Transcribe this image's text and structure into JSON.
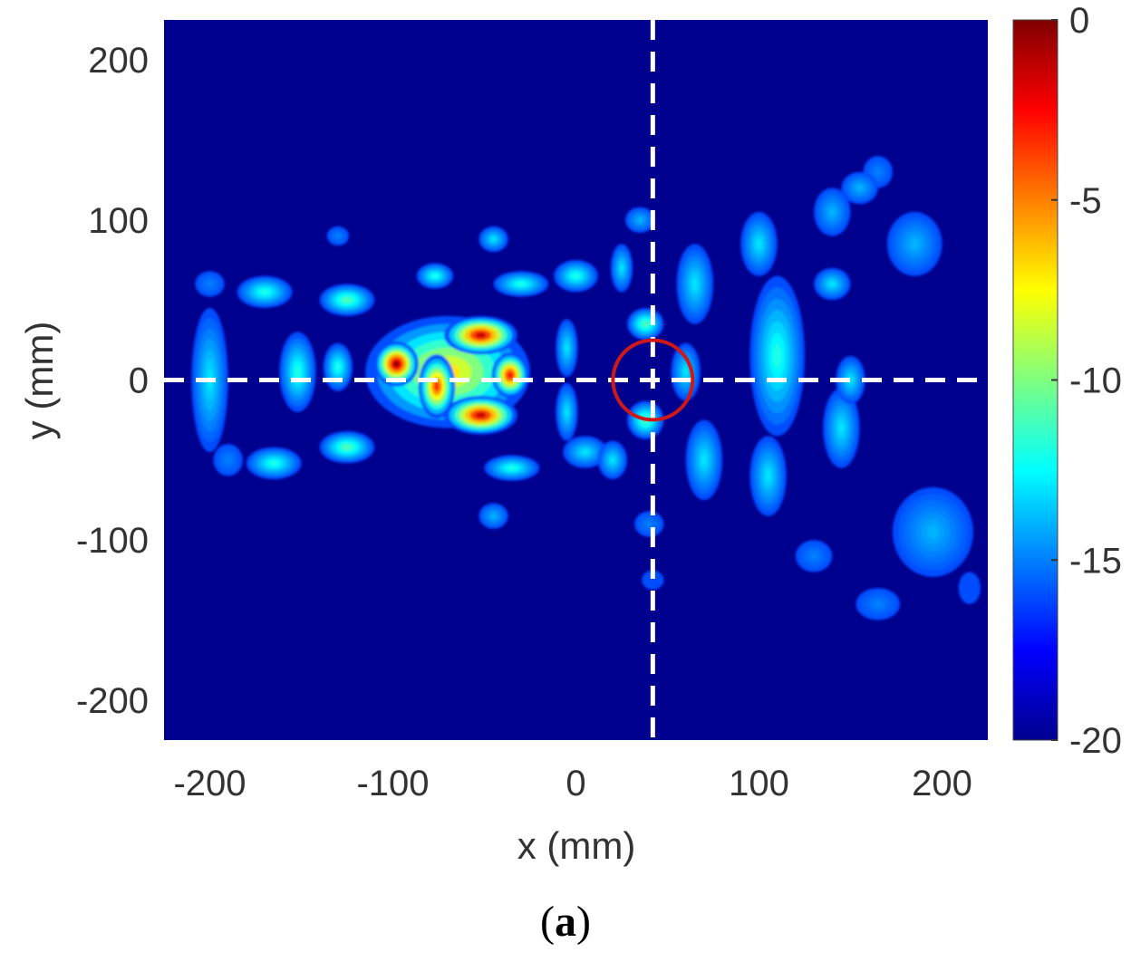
{
  "panel_label": "a",
  "panel_open": "(",
  "panel_close": ")",
  "chart_data": {
    "type": "heatmap",
    "title": "",
    "xlabel": "x (mm)",
    "ylabel": "y (mm)",
    "xlim": [
      -225,
      225
    ],
    "ylim": [
      -225,
      225
    ],
    "xticks": [
      -200,
      -100,
      0,
      100,
      200
    ],
    "yticks": [
      200,
      100,
      0,
      -100,
      -200
    ],
    "colormap": "jet",
    "colorbar": {
      "range": [
        -20,
        0
      ],
      "ticks": [
        0,
        -5,
        -10,
        -15,
        -20
      ]
    },
    "crosshair": {
      "x": 42,
      "y": 0,
      "style": "white dashed"
    },
    "marker": {
      "type": "circle",
      "x": 42,
      "y": 0,
      "radius_mm": 15,
      "color": "#d01818"
    },
    "blobs": [
      {
        "x": -70,
        "y": 5,
        "rx": 45,
        "ry": 35,
        "v": -7
      },
      {
        "x": -98,
        "y": 10,
        "rx": 12,
        "ry": 14,
        "v": -0.5
      },
      {
        "x": -52,
        "y": 28,
        "rx": 20,
        "ry": 12,
        "v": -1.5
      },
      {
        "x": -52,
        "y": -22,
        "rx": 20,
        "ry": 12,
        "v": -1.5
      },
      {
        "x": -36,
        "y": 3,
        "rx": 10,
        "ry": 14,
        "v": -2.5
      },
      {
        "x": -76,
        "y": -4,
        "rx": 10,
        "ry": 20,
        "v": -3.5
      },
      {
        "x": -200,
        "y": 0,
        "rx": 10,
        "ry": 45,
        "v": -13
      },
      {
        "x": -170,
        "y": 55,
        "rx": 15,
        "ry": 10,
        "v": -12
      },
      {
        "x": -165,
        "y": -52,
        "rx": 15,
        "ry": 10,
        "v": -12
      },
      {
        "x": -152,
        "y": 5,
        "rx": 10,
        "ry": 25,
        "v": -12
      },
      {
        "x": -125,
        "y": 50,
        "rx": 15,
        "ry": 10,
        "v": -11
      },
      {
        "x": -125,
        "y": -42,
        "rx": 15,
        "ry": 10,
        "v": -11
      },
      {
        "x": -130,
        "y": 8,
        "rx": 8,
        "ry": 15,
        "v": -12
      },
      {
        "x": -77,
        "y": 65,
        "rx": 10,
        "ry": 8,
        "v": -12
      },
      {
        "x": -30,
        "y": 60,
        "rx": 15,
        "ry": 8,
        "v": -12
      },
      {
        "x": -35,
        "y": -55,
        "rx": 15,
        "ry": 8,
        "v": -12
      },
      {
        "x": -45,
        "y": 88,
        "rx": 8,
        "ry": 8,
        "v": -13
      },
      {
        "x": -5,
        "y": 20,
        "rx": 6,
        "ry": 18,
        "v": -13
      },
      {
        "x": -5,
        "y": -20,
        "rx": 6,
        "ry": 18,
        "v": -13
      },
      {
        "x": 0,
        "y": 65,
        "rx": 12,
        "ry": 10,
        "v": -12
      },
      {
        "x": 5,
        "y": -45,
        "rx": 12,
        "ry": 10,
        "v": -13
      },
      {
        "x": -45,
        "y": -85,
        "rx": 8,
        "ry": 8,
        "v": -14
      },
      {
        "x": -130,
        "y": 90,
        "rx": 6,
        "ry": 6,
        "v": -15
      },
      {
        "x": 25,
        "y": 70,
        "rx": 6,
        "ry": 15,
        "v": -13
      },
      {
        "x": 38,
        "y": 35,
        "rx": 10,
        "ry": 10,
        "v": -11
      },
      {
        "x": 38,
        "y": -25,
        "rx": 10,
        "ry": 12,
        "v": -11
      },
      {
        "x": 20,
        "y": -50,
        "rx": 8,
        "ry": 12,
        "v": -13
      },
      {
        "x": 35,
        "y": 100,
        "rx": 8,
        "ry": 8,
        "v": -14
      },
      {
        "x": 40,
        "y": -90,
        "rx": 8,
        "ry": 8,
        "v": -15
      },
      {
        "x": 42,
        "y": -125,
        "rx": 6,
        "ry": 6,
        "v": -16
      },
      {
        "x": 65,
        "y": 60,
        "rx": 10,
        "ry": 25,
        "v": -13
      },
      {
        "x": 70,
        "y": -50,
        "rx": 10,
        "ry": 25,
        "v": -13
      },
      {
        "x": 60,
        "y": 5,
        "rx": 8,
        "ry": 18,
        "v": -13
      },
      {
        "x": 100,
        "y": 85,
        "rx": 10,
        "ry": 20,
        "v": -13
      },
      {
        "x": 110,
        "y": 15,
        "rx": 15,
        "ry": 50,
        "v": -12
      },
      {
        "x": 105,
        "y": -60,
        "rx": 10,
        "ry": 25,
        "v": -13
      },
      {
        "x": 140,
        "y": 105,
        "rx": 10,
        "ry": 15,
        "v": -14
      },
      {
        "x": 140,
        "y": 60,
        "rx": 10,
        "ry": 10,
        "v": -13
      },
      {
        "x": 145,
        "y": -30,
        "rx": 10,
        "ry": 25,
        "v": -13
      },
      {
        "x": 155,
        "y": 120,
        "rx": 10,
        "ry": 10,
        "v": -14
      },
      {
        "x": 150,
        "y": 0,
        "rx": 8,
        "ry": 15,
        "v": -13
      },
      {
        "x": 165,
        "y": 130,
        "rx": 8,
        "ry": 10,
        "v": -15
      },
      {
        "x": 185,
        "y": 85,
        "rx": 15,
        "ry": 20,
        "v": -14
      },
      {
        "x": 195,
        "y": -95,
        "rx": 22,
        "ry": 28,
        "v": -14
      },
      {
        "x": 165,
        "y": -140,
        "rx": 12,
        "ry": 10,
        "v": -15
      },
      {
        "x": 130,
        "y": -110,
        "rx": 10,
        "ry": 10,
        "v": -15
      },
      {
        "x": 215,
        "y": -130,
        "rx": 6,
        "ry": 10,
        "v": -16
      },
      {
        "x": -200,
        "y": 60,
        "rx": 8,
        "ry": 8,
        "v": -15
      },
      {
        "x": -190,
        "y": -50,
        "rx": 8,
        "ry": 10,
        "v": -15
      }
    ]
  }
}
